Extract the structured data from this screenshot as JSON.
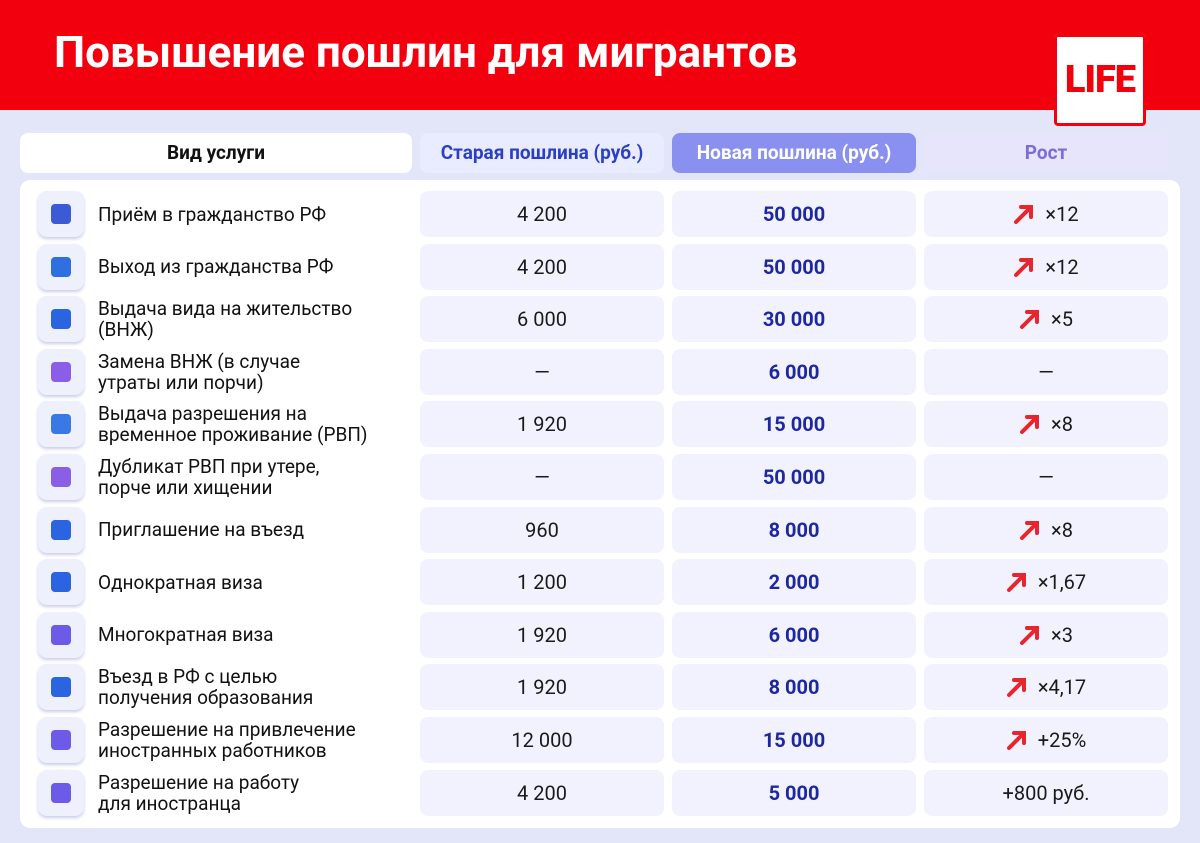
{
  "header": {
    "title": "Повышение пошлин для мигрантов",
    "logo": "LIFE"
  },
  "table": {
    "columns": [
      "Вид услуги",
      "Старая пошлина (руб.)",
      "Новая пошлина (руб.)",
      "Рост"
    ],
    "rows": [
      [
        "Приём в гражданство РФ",
        "4 200",
        "50 000",
        "×12"
      ],
      [
        "Выход из гражданства РФ",
        "4 200",
        "50 000",
        "×12"
      ],
      [
        "Выдача вида на жительство\n(ВНЖ)",
        "6 000",
        "30 000",
        "×5"
      ],
      [
        "Замена ВНЖ (в случае\nутраты или порчи)",
        "—",
        "6 000",
        "—"
      ],
      [
        "Выдача разрешения на\nвременное проживание (РВП)",
        "1 920",
        "15 000",
        "×8"
      ],
      [
        "Дубликат РВП при утере,\nпорче или хищении",
        "—",
        "50 000",
        "—"
      ],
      [
        "Приглашение на въезд",
        "960",
        "8 000",
        "×8"
      ],
      [
        "Однократная виза",
        "1 200",
        "2 000",
        "×1,67"
      ],
      [
        "Многократная виза",
        "1 920",
        "6 000",
        "×3"
      ],
      [
        "Въезд в РФ с целью\nполучения образования",
        "1 920",
        "8 000",
        "×4,17"
      ],
      [
        "Разрешение на привлечение\nиностранных работников",
        "12 000",
        "15 000",
        "+25%"
      ],
      [
        "Разрешение на работу\nдля иностранца",
        "4 200",
        "5 000",
        "+800 руб."
      ]
    ]
  }
}
